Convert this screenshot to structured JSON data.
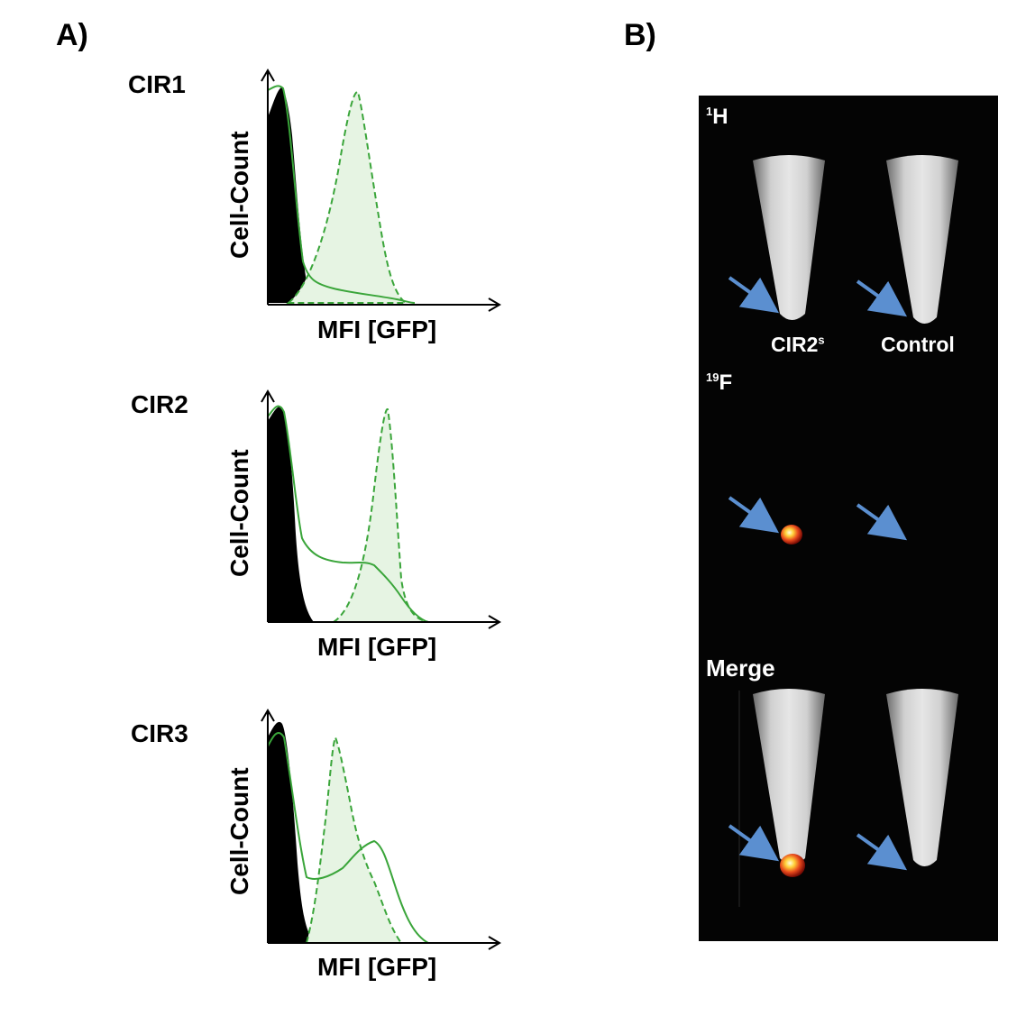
{
  "panels": {
    "a_label": "A)",
    "b_label": "B)"
  },
  "histograms": [
    {
      "sample": "CIR1",
      "xlabel": "MFI [GFP]",
      "ylabel": "Cell-Count"
    },
    {
      "sample": "CIR2",
      "xlabel": "MFI [GFP]",
      "ylabel": "Cell-Count"
    },
    {
      "sample": "CIR3",
      "xlabel": "MFI [GFP]",
      "ylabel": "Cell-Count"
    }
  ],
  "mri": {
    "h_label_sup": "1",
    "h_label": "H",
    "f_label_sup": "19",
    "f_label": "F",
    "merge_label": "Merge",
    "left_tube": "CIR2",
    "left_tube_sup": "s",
    "right_tube": "Control"
  },
  "colors": {
    "green_line": "#3aa53a",
    "green_fill": "#e6f4e3",
    "mri_bg": "#040404",
    "arrow": "#5b8fd0"
  }
}
